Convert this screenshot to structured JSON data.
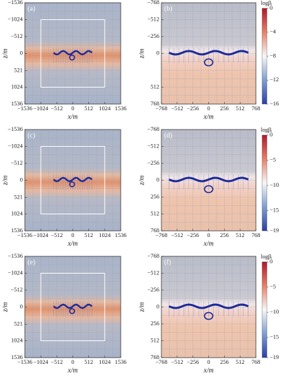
{
  "panels": [
    {
      "label": "(a)",
      "x_label": "x/m",
      "y_label": "z/m",
      "xticks": [
        "−1536",
        "−1024",
        "−512",
        "0",
        "512",
        "1024",
        "1536"
      ],
      "yticks": [
        "−1536",
        "−1024",
        "−512",
        "0",
        "521",
        "1024",
        "1536"
      ]
    },
    {
      "label": "(b)",
      "x_label": "x/m",
      "y_label": "z/m",
      "xticks": [
        "−768",
        "−512",
        "−256",
        "0",
        "256",
        "512",
        "768"
      ],
      "yticks": [
        "−768",
        "−512",
        "−256",
        "0",
        "512",
        "768"
      ],
      "colorbar": {
        "title": "logβᵢ",
        "ticks": [
          "0",
          "−4",
          "−8",
          "−12",
          "−16"
        ]
      }
    },
    {
      "label": "(c)",
      "x_label": "x/m",
      "y_label": "z/m",
      "xticks": [
        "−1536",
        "−1024",
        "−512",
        "0",
        "512",
        "1024",
        "1536"
      ],
      "yticks": [
        "−1536",
        "−1024",
        "−512",
        "0",
        "521",
        "1024",
        "1536"
      ]
    },
    {
      "label": "(d)",
      "x_label": "x/m",
      "y_label": "z/m",
      "xticks": [
        "−768",
        "−512",
        "−256",
        "0",
        "256",
        "512",
        "768"
      ],
      "yticks": [
        "−768",
        "−512",
        "−256",
        "0",
        "256",
        "512",
        "768"
      ],
      "colorbar": {
        "title": "logβᵢ",
        "ticks": [
          "0",
          "−5",
          "−10",
          "−15",
          "−19"
        ]
      }
    },
    {
      "label": "(e)",
      "x_label": "x/m",
      "y_label": "z/m",
      "xticks": [
        "−1536",
        "−1024",
        "−512",
        "0",
        "512",
        "1024",
        "1536"
      ],
      "yticks": [
        "−1536",
        "−1024",
        "−512",
        "0",
        "521",
        "1024",
        "1536"
      ]
    },
    {
      "label": "(f)",
      "x_label": "x/m",
      "y_label": "z/m",
      "xticks": [
        "−768",
        "−512",
        "−256",
        "0",
        "256",
        "512",
        "768"
      ],
      "yticks": [
        "−768",
        "−512",
        "−256",
        "0",
        "256",
        "512",
        "768"
      ],
      "colorbar": {
        "title": "logβᵢ",
        "ticks": [
          "0",
          "−5",
          "−10",
          "−15",
          "−19"
        ]
      }
    }
  ]
}
